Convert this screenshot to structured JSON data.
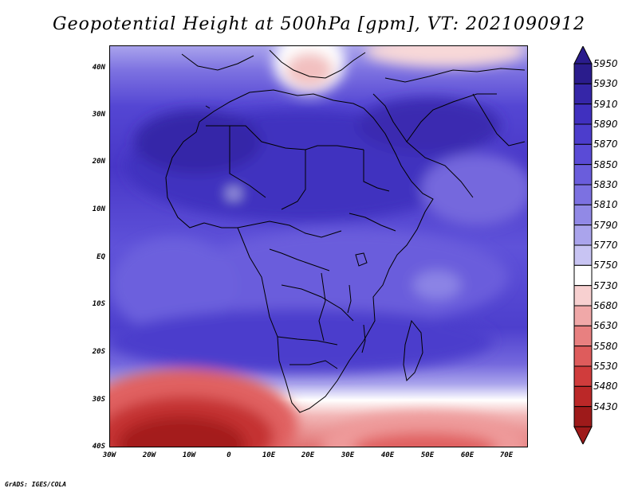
{
  "title": "Geopotential Height at 500hPa [gpm], VT: 2021090912",
  "credit": "GrADS: IGES/COLA",
  "lat_labels": [
    "40N",
    "30N",
    "20N",
    "10N",
    "EQ",
    "10S",
    "20S",
    "30S",
    "40S"
  ],
  "lon_labels": [
    "30W",
    "20W",
    "10W",
    "0",
    "10E",
    "20E",
    "30E",
    "40E",
    "50E",
    "60E",
    "70E"
  ],
  "colorbar": {
    "levels": [
      "5950",
      "5930",
      "5910",
      "5890",
      "5870",
      "5850",
      "5830",
      "5810",
      "5790",
      "5770",
      "5750",
      "5730",
      "5680",
      "5630",
      "5580",
      "5530",
      "5480",
      "5430"
    ],
    "colors": [
      "#2a1c8c",
      "#3526a8",
      "#4030bf",
      "#4c3dcc",
      "#5a4bd6",
      "#6a5ddc",
      "#7c71e1",
      "#9189e6",
      "#aaa4ec",
      "#c8c4f3",
      "#ffffff",
      "#f7d0d0",
      "#f0a8a8",
      "#e88080",
      "#de5c5c",
      "#d03c3c",
      "#bb2828",
      "#9e1a1a"
    ]
  }
}
